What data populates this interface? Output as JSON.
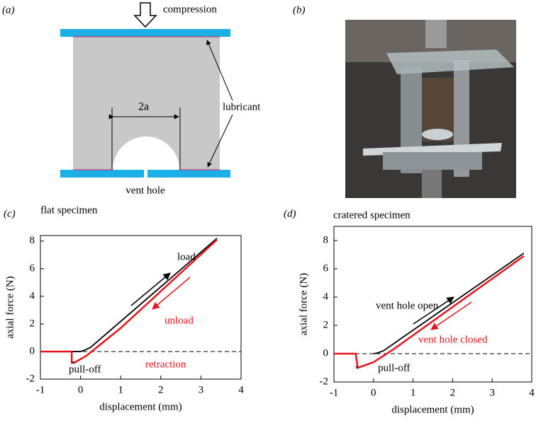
{
  "panel_a": {
    "label": "(a)",
    "compression": "compression",
    "width": "2a",
    "lubricant": "lubricant",
    "vent_hole": "vent hole"
  },
  "panel_b": {
    "label": "(b)"
  },
  "chart_data": [
    {
      "type": "line",
      "label": "(c)",
      "title": "flat specimen",
      "x_label": "displacement (mm)",
      "y_label": "axial force (N)",
      "xlim": [
        -1,
        4
      ],
      "xticks": [
        -1,
        0,
        1,
        2,
        3,
        4
      ],
      "ylim": [
        -2,
        8.4
      ],
      "yticks": [
        -2,
        0,
        2,
        4,
        6,
        8
      ],
      "hline": 0,
      "series": [
        {
          "color": "#000000",
          "x": [
            -1,
            0,
            0.1,
            0.25,
            3.4
          ],
          "values": [
            0,
            0,
            0.1,
            0.3,
            8.2
          ]
        },
        {
          "color": "#e8141b",
          "x": [
            3.4,
            1.0,
            0.15,
            0.0,
            -0.15,
            -0.22,
            -0.22,
            -1
          ],
          "values": [
            8.1,
            1.7,
            -0.3,
            -0.55,
            -0.8,
            -0.8,
            0,
            0
          ]
        }
      ],
      "annotations": [
        {
          "text": "load",
          "color": "#000000"
        },
        {
          "text": "unload",
          "color": "#e8141b"
        },
        {
          "text": "retraction",
          "color": "#e8141b"
        },
        {
          "text": "pull-off",
          "color": "#000000"
        }
      ]
    },
    {
      "type": "line",
      "label": "(d)",
      "title": "cratered specimen",
      "x_label": "displacement (mm)",
      "y_label": "axial force (N)",
      "xlim": [
        -1,
        4
      ],
      "xticks": [
        -1,
        0,
        1,
        2,
        3,
        4
      ],
      "ylim": [
        -2,
        9
      ],
      "yticks": [
        -2,
        0,
        2,
        4,
        6,
        8
      ],
      "hline": 0,
      "series": [
        {
          "color": "#000000",
          "x": [
            0,
            0.1,
            0.25,
            3.8
          ],
          "values": [
            0,
            0.05,
            0.2,
            7.1
          ]
        },
        {
          "color": "#e8141b",
          "x": [
            3.8,
            0.5,
            0.0,
            -0.4,
            -0.45,
            -1
          ],
          "values": [
            6.9,
            0.3,
            -0.6,
            -1.0,
            0,
            0
          ]
        }
      ],
      "annotations": [
        {
          "text": "vent hole open",
          "color": "#000000"
        },
        {
          "text": "vent hole closed",
          "color": "#e8141b"
        },
        {
          "text": "pull-off",
          "color": "#000000"
        }
      ]
    }
  ]
}
